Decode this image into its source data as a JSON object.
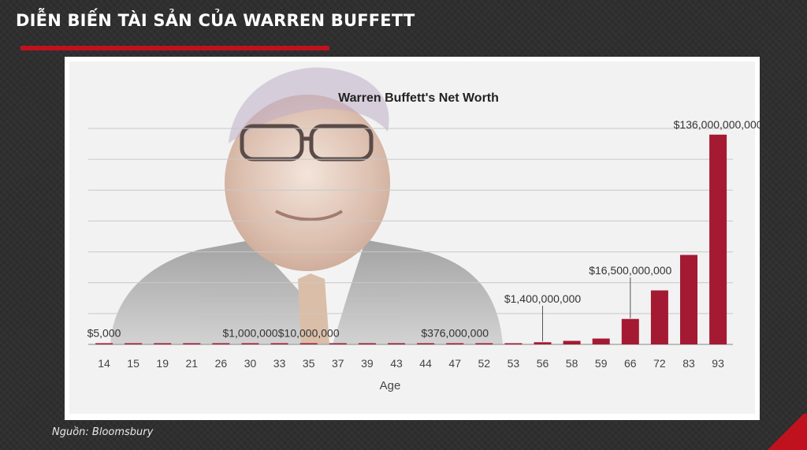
{
  "slide": {
    "title": "DIỄN BIẾN TÀI SẢN CỦA WARREN BUFFETT",
    "source": "Nguồn: Bloomsbury"
  },
  "colors": {
    "bar": "#a31a32",
    "accent": "#c0111f",
    "grid": "#c8c8c8"
  },
  "chart_data": {
    "type": "bar",
    "title": "Warren Buffett's Net Worth",
    "xlabel": "Age",
    "ylabel": "",
    "categories": [
      "14",
      "15",
      "19",
      "21",
      "26",
      "30",
      "33",
      "35",
      "37",
      "39",
      "43",
      "44",
      "47",
      "52",
      "53",
      "56",
      "58",
      "59",
      "66",
      "72",
      "83",
      "93"
    ],
    "values": [
      5000,
      20000,
      90000,
      127000,
      174000,
      1000000,
      3500000,
      10000000,
      30000000,
      50000000,
      70000000,
      80000000,
      376000000,
      400000000,
      700000000,
      1400000000,
      2300000000,
      3800000000,
      16500000000,
      35000000000,
      58000000000,
      136000000000
    ],
    "ylim": [
      0,
      140000000000
    ],
    "grid": true,
    "data_labels": [
      {
        "category": "14",
        "text": "$5,000"
      },
      {
        "category": "30",
        "text": "$1,000,000"
      },
      {
        "category": "35",
        "text": "$10,000,000"
      },
      {
        "category": "47",
        "text": "$376,000,000"
      },
      {
        "category": "56",
        "text": "$1,400,000,000"
      },
      {
        "category": "66",
        "text": "$16,500,000,000"
      },
      {
        "category": "93",
        "text": "$136,000,000,000"
      }
    ]
  }
}
